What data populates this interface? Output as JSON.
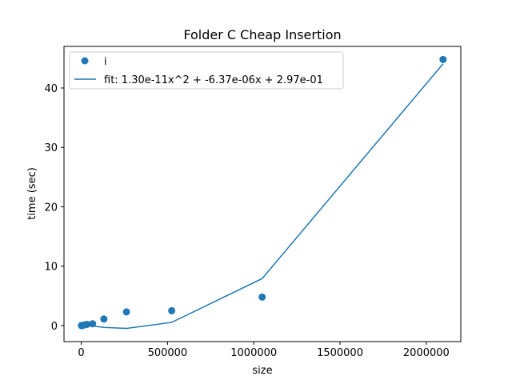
{
  "chart_data": {
    "type": "scatter",
    "title": "Folder C Cheap Insertion",
    "xlabel": "size",
    "ylabel": "time (sec)",
    "xlim": [
      -100000,
      2200000
    ],
    "ylim": [
      -2.7,
      47.0
    ],
    "x_ticks": [
      0,
      500000,
      1000000,
      1500000,
      2000000
    ],
    "x_tick_labels": [
      "0",
      "500000",
      "1000000",
      "1500000",
      "2000000"
    ],
    "y_ticks": [
      0,
      10,
      20,
      30,
      40
    ],
    "y_tick_labels": [
      "0",
      "10",
      "20",
      "30",
      "40"
    ],
    "grid": false,
    "legend_position": "top-left",
    "series": [
      {
        "name": "i",
        "kind": "scatter",
        "color": "#1f77b4",
        "x": [
          1024,
          2048,
          4096,
          8192,
          16384,
          32768,
          65536,
          131072,
          262144,
          524288,
          1048576,
          2097152
        ],
        "y": [
          0.0,
          0.0,
          0.01,
          0.03,
          0.1,
          0.2,
          0.3,
          1.1,
          2.3,
          2.5,
          4.8,
          44.8
        ]
      },
      {
        "name": "fit: 1.30e-11x^2 + -6.37e-06x + 2.97e-01",
        "kind": "line",
        "color": "#1f77b4",
        "x": [
          1024,
          2048,
          4096,
          8192,
          16384,
          32768,
          65536,
          131072,
          262144,
          524288,
          1048576,
          2097152
        ],
        "y": [
          0.29,
          0.28,
          0.27,
          0.25,
          0.2,
          0.1,
          -0.07,
          -0.31,
          -0.48,
          0.54,
          7.91,
          44.07
        ]
      }
    ]
  }
}
